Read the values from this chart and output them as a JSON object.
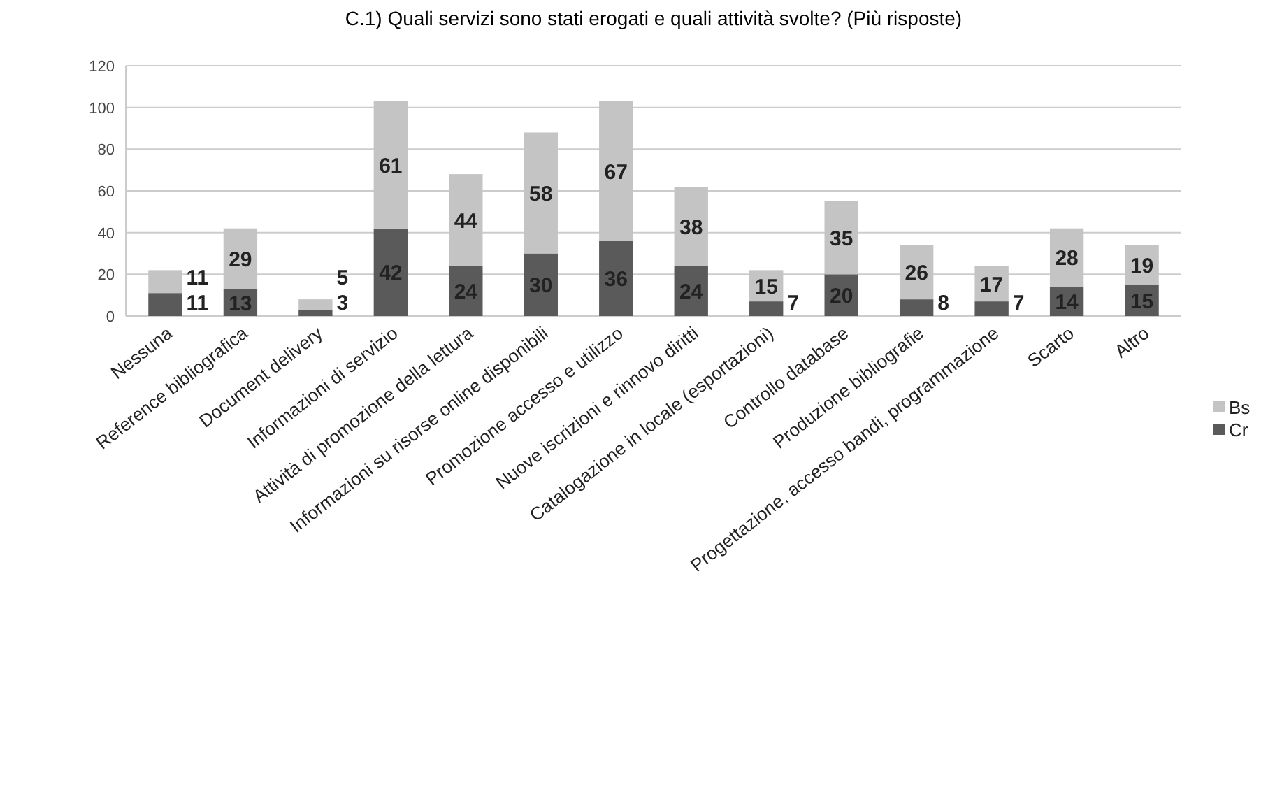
{
  "chart_data": {
    "type": "bar",
    "title": "C.1) Quali servizi sono stati erogati e quali attività svolte? (Più risposte)",
    "categories": [
      "Nessuna",
      "Reference bibliografica",
      "Document delivery",
      "Informazioni di servizio",
      "Attività di promozione della lettura",
      "Informazioni su risorse online disponibili",
      "Promozione accesso e utilizzo",
      "Nuove iscrizioni e rinnovo diritti",
      "Catalogazione in locale (esportazioni)",
      "Controllo database",
      "Produzione bibliografie",
      "Progettazione, accesso bandi, programmazione",
      "Scarto",
      "Altro"
    ],
    "series": [
      {
        "name": "Cr",
        "color": "#5a5a5a",
        "values": [
          11,
          13,
          3,
          42,
          24,
          30,
          36,
          24,
          7,
          20,
          8,
          7,
          14,
          15
        ]
      },
      {
        "name": "Bs",
        "color": "#c4c4c4",
        "values": [
          11,
          29,
          5,
          61,
          44,
          58,
          67,
          38,
          15,
          35,
          26,
          17,
          28,
          19
        ]
      }
    ],
    "stacked": true,
    "data_labels": true,
    "ylim": [
      0,
      120
    ],
    "yticks": [
      0,
      20,
      40,
      60,
      80,
      100,
      120
    ],
    "grid": "y",
    "legend": "right"
  }
}
